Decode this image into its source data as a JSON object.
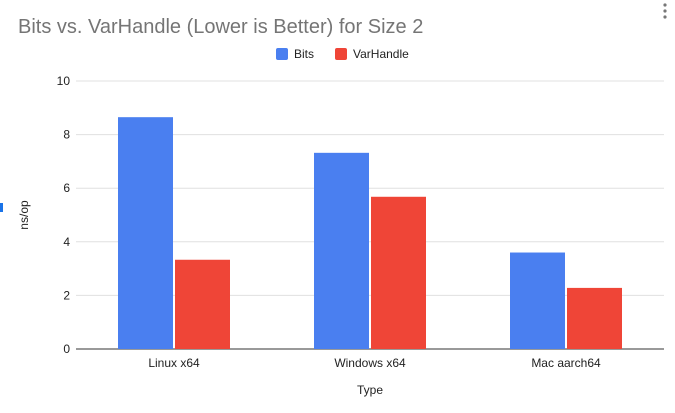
{
  "chart_data": {
    "type": "bar",
    "title": "Bits vs. VarHandle (Lower is Better) for Size 2",
    "xlabel": "Type",
    "ylabel": "ns/op",
    "categories": [
      "Linux x64",
      "Windows x64",
      "Mac aarch64"
    ],
    "series": [
      {
        "name": "Bits",
        "color": "#4a7ff0",
        "values": [
          8.65,
          7.32,
          3.6
        ]
      },
      {
        "name": "VarHandle",
        "color": "#ef4537",
        "values": [
          3.33,
          5.68,
          2.28
        ]
      }
    ],
    "ylim": [
      0,
      10
    ],
    "yticks": [
      "0",
      "2",
      "4",
      "6",
      "8",
      "10"
    ],
    "grid": true,
    "legend": "top-center"
  },
  "menu_icon": "more-vert-icon"
}
